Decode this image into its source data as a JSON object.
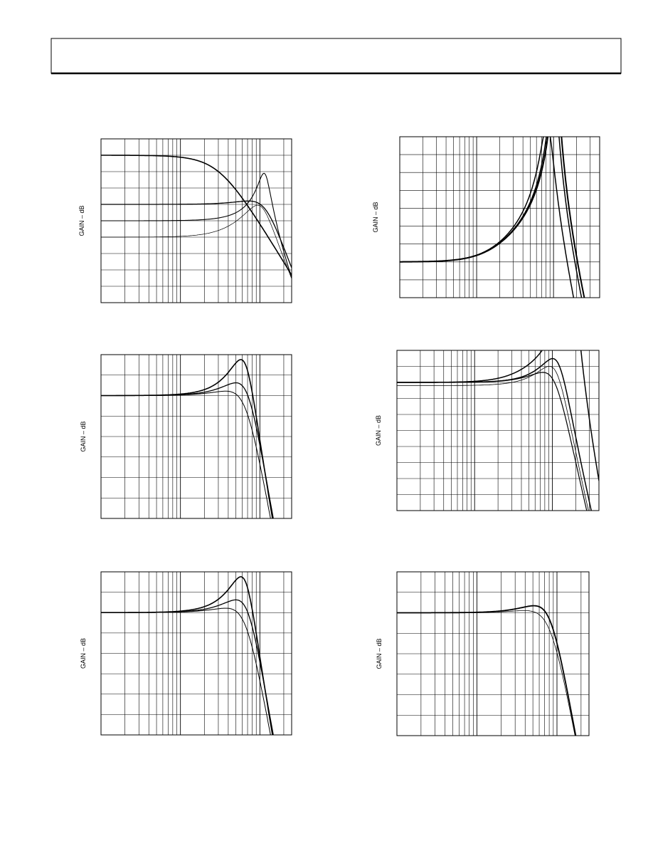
{
  "plots": [
    {
      "y_label": "GAIN – dB"
    },
    {
      "y_label": "GAIN – dB"
    },
    {
      "y_label": "GAIN – dB"
    },
    {
      "y_label": "GAIN – dB"
    },
    {
      "y_label": "GAIN – dB"
    },
    {
      "y_label": "GAIN – dB"
    }
  ]
}
